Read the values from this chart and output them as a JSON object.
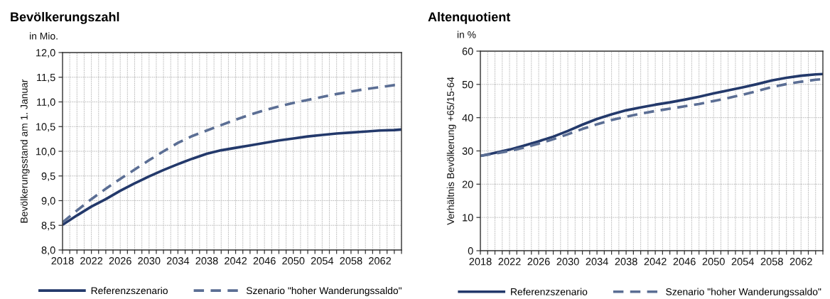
{
  "chart_data": [
    {
      "type": "line",
      "title": "Bevölkerungszahl",
      "ylabel": "Bevölkerungsstand am 1. Januar",
      "annotations": [
        "in Mio."
      ],
      "x": [
        2018,
        2020,
        2022,
        2024,
        2026,
        2028,
        2030,
        2032,
        2034,
        2036,
        2038,
        2040,
        2042,
        2044,
        2046,
        2048,
        2050,
        2052,
        2054,
        2056,
        2058,
        2060,
        2062,
        2064,
        2065
      ],
      "series": [
        {
          "name": "Referenzszenario",
          "color": "#23396b",
          "line_style": "solid",
          "values": [
            8.51,
            8.7,
            8.88,
            9.03,
            9.2,
            9.35,
            9.49,
            9.62,
            9.74,
            9.85,
            9.95,
            10.02,
            10.07,
            10.12,
            10.17,
            10.22,
            10.26,
            10.3,
            10.33,
            10.36,
            10.38,
            10.4,
            10.42,
            10.43,
            10.44
          ]
        },
        {
          "name": "Szenario \"hoher Wanderungssaldo\"",
          "color": "#5b6e94",
          "line_style": "dashed",
          "values": [
            8.56,
            8.8,
            9.03,
            9.24,
            9.44,
            9.63,
            9.82,
            10.0,
            10.17,
            10.31,
            10.42,
            10.53,
            10.64,
            10.74,
            10.83,
            10.91,
            10.98,
            11.04,
            11.1,
            11.16,
            11.21,
            11.26,
            11.3,
            11.34,
            11.35
          ]
        }
      ],
      "xlim": [
        2018,
        2065
      ],
      "xticks": [
        2018,
        {
          "value": 2019,
          "label": null
        },
        {
          "value": 2020,
          "label": null
        },
        {
          "value": 2021,
          "label": null
        },
        2022,
        {
          "value": 2023,
          "label": null
        },
        {
          "value": 2024,
          "label": null
        },
        {
          "value": 2025,
          "label": null
        },
        2026,
        {
          "value": 2027,
          "label": null
        },
        {
          "value": 2028,
          "label": null
        },
        {
          "value": 2029,
          "label": null
        },
        2030,
        {
          "value": 2031,
          "label": null
        },
        {
          "value": 2032,
          "label": null
        },
        {
          "value": 2033,
          "label": null
        },
        2034,
        {
          "value": 2035,
          "label": null
        },
        {
          "value": 2036,
          "label": null
        },
        {
          "value": 2037,
          "label": null
        },
        2038,
        {
          "value": 2039,
          "label": null
        },
        {
          "value": 2040,
          "label": null
        },
        {
          "value": 2041,
          "label": null
        },
        2042,
        {
          "value": 2043,
          "label": null
        },
        {
          "value": 2044,
          "label": null
        },
        {
          "value": 2045,
          "label": null
        },
        2046,
        {
          "value": 2047,
          "label": null
        },
        {
          "value": 2048,
          "label": null
        },
        {
          "value": 2049,
          "label": null
        },
        2050,
        {
          "value": 2051,
          "label": null
        },
        {
          "value": 2052,
          "label": null
        },
        {
          "value": 2053,
          "label": null
        },
        2054,
        {
          "value": 2055,
          "label": null
        },
        {
          "value": 2056,
          "label": null
        },
        {
          "value": 2057,
          "label": null
        },
        2058,
        {
          "value": 2059,
          "label": null
        },
        {
          "value": 2060,
          "label": null
        },
        {
          "value": 2061,
          "label": null
        },
        2062,
        {
          "value": 2063,
          "label": null
        },
        {
          "value": 2064,
          "label": null
        },
        {
          "value": 2065,
          "label": null
        }
      ],
      "ylim": [
        8.0,
        12.0
      ],
      "yticks": [
        {
          "value": 8.0,
          "label": "8,0"
        },
        {
          "value": 8.5,
          "label": "8,5"
        },
        {
          "value": 9.0,
          "label": "9,0"
        },
        {
          "value": 9.5,
          "label": "9,5"
        },
        {
          "value": 10.0,
          "label": "10,0"
        },
        {
          "value": 10.5,
          "label": "10,5"
        },
        {
          "value": 11.0,
          "label": "11,0"
        },
        {
          "value": 11.5,
          "label": "11,5"
        },
        {
          "value": 12.0,
          "label": "12,0"
        }
      ],
      "grid": true,
      "legend": "bottom"
    },
    {
      "type": "line",
      "title": "Altenquotient",
      "ylabel": "Verhältnis Bevölkerung +65/15-64",
      "annotations": [
        "in %"
      ],
      "x": [
        2018,
        2020,
        2022,
        2024,
        2026,
        2028,
        2030,
        2032,
        2034,
        2036,
        2038,
        2040,
        2042,
        2044,
        2046,
        2048,
        2050,
        2052,
        2054,
        2056,
        2058,
        2060,
        2062,
        2064,
        2065
      ],
      "series": [
        {
          "name": "Referenzszenario",
          "color": "#23396b",
          "line_style": "solid",
          "values": [
            28.5,
            29.4,
            30.4,
            31.6,
            32.9,
            34.3,
            36.0,
            37.9,
            39.6,
            41.0,
            42.2,
            43.1,
            43.9,
            44.6,
            45.4,
            46.3,
            47.3,
            48.2,
            49.1,
            50.1,
            51.2,
            52.0,
            52.6,
            53.0,
            53.1
          ]
        },
        {
          "name": "Szenario \"hoher Wanderungssaldo\"",
          "color": "#5b6e94",
          "line_style": "dashed",
          "values": [
            28.5,
            29.2,
            30.0,
            31.0,
            32.2,
            33.5,
            35.0,
            36.6,
            38.0,
            39.3,
            40.3,
            41.2,
            42.0,
            42.7,
            43.4,
            44.1,
            45.0,
            45.9,
            46.9,
            48.0,
            49.2,
            50.1,
            50.8,
            51.4,
            51.6
          ]
        }
      ],
      "xlim": [
        2018,
        2065
      ],
      "xticks": [
        2018,
        {
          "value": 2019,
          "label": null
        },
        {
          "value": 2020,
          "label": null
        },
        {
          "value": 2021,
          "label": null
        },
        2022,
        {
          "value": 2023,
          "label": null
        },
        {
          "value": 2024,
          "label": null
        },
        {
          "value": 2025,
          "label": null
        },
        2026,
        {
          "value": 2027,
          "label": null
        },
        {
          "value": 2028,
          "label": null
        },
        {
          "value": 2029,
          "label": null
        },
        2030,
        {
          "value": 2031,
          "label": null
        },
        {
          "value": 2032,
          "label": null
        },
        {
          "value": 2033,
          "label": null
        },
        2034,
        {
          "value": 2035,
          "label": null
        },
        {
          "value": 2036,
          "label": null
        },
        {
          "value": 2037,
          "label": null
        },
        2038,
        {
          "value": 2039,
          "label": null
        },
        {
          "value": 2040,
          "label": null
        },
        {
          "value": 2041,
          "label": null
        },
        2042,
        {
          "value": 2043,
          "label": null
        },
        {
          "value": 2044,
          "label": null
        },
        {
          "value": 2045,
          "label": null
        },
        2046,
        {
          "value": 2047,
          "label": null
        },
        {
          "value": 2048,
          "label": null
        },
        {
          "value": 2049,
          "label": null
        },
        2050,
        {
          "value": 2051,
          "label": null
        },
        {
          "value": 2052,
          "label": null
        },
        {
          "value": 2053,
          "label": null
        },
        2054,
        {
          "value": 2055,
          "label": null
        },
        {
          "value": 2056,
          "label": null
        },
        {
          "value": 2057,
          "label": null
        },
        2058,
        {
          "value": 2059,
          "label": null
        },
        {
          "value": 2060,
          "label": null
        },
        {
          "value": 2061,
          "label": null
        },
        2062,
        {
          "value": 2063,
          "label": null
        },
        {
          "value": 2064,
          "label": null
        },
        {
          "value": 2065,
          "label": null
        }
      ],
      "ylim": [
        0,
        60
      ],
      "yticks": [
        0,
        10,
        20,
        30,
        40,
        50,
        60
      ],
      "grid": true,
      "legend": "bottom"
    }
  ]
}
